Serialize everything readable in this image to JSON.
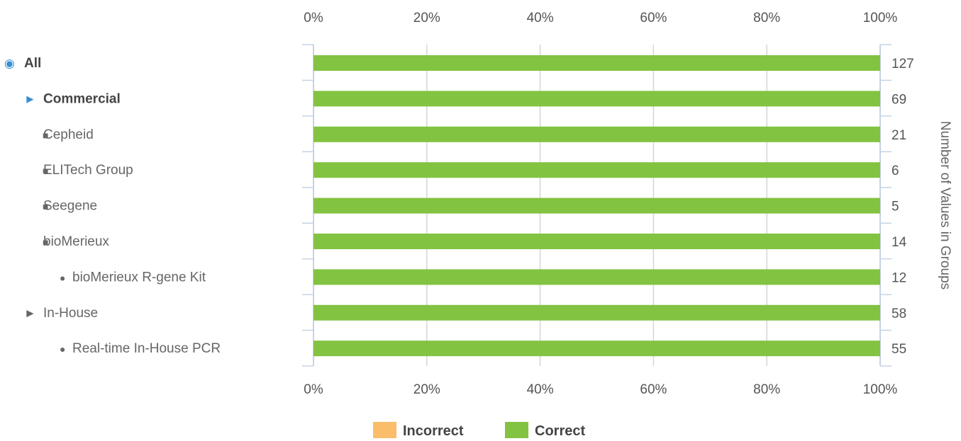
{
  "colors": {
    "correct": "#82c341",
    "incorrect": "#f9bd6b",
    "marker_accent": "#3a8fd0",
    "marker_default": "#666666",
    "gridline": "#d5d5d5",
    "axis_line": "#c5d3e4"
  },
  "chart_data": {
    "type": "bar",
    "orientation": "horizontal",
    "stacked": true,
    "percent_scale": true,
    "xlim": [
      0,
      100
    ],
    "x_ticks": [
      "0%",
      "20%",
      "40%",
      "60%",
      "80%",
      "100%"
    ],
    "secondary_ylabel": "Number of Values in Groups",
    "categories": [
      {
        "marker": "◉",
        "label": "All",
        "level": 0,
        "bold": true,
        "accent": true,
        "count": "127"
      },
      {
        "marker": "►",
        "label": "Commercial",
        "level": 1,
        "bold": true,
        "accent": true,
        "count": "69"
      },
      {
        "marker": "■",
        "label": "Cepheid",
        "level": 2,
        "bold": false,
        "accent": false,
        "count": "21"
      },
      {
        "marker": "■",
        "label": "ELITech Group",
        "level": 2,
        "bold": false,
        "accent": false,
        "count": "6"
      },
      {
        "marker": "■",
        "label": "Seegene",
        "level": 2,
        "bold": false,
        "accent": false,
        "count": "5"
      },
      {
        "marker": "■",
        "label": "bioMerieux",
        "level": 2,
        "bold": false,
        "accent": false,
        "count": "14"
      },
      {
        "marker": "●",
        "label": "bioMerieux R-gene Kit",
        "level": 3,
        "bold": false,
        "accent": false,
        "count": "12"
      },
      {
        "marker": "►",
        "label": "In-House",
        "level": 1,
        "bold": false,
        "accent": false,
        "count": "58"
      },
      {
        "marker": "●",
        "label": "Real-time In-House PCR",
        "level": 3,
        "bold": false,
        "accent": false,
        "count": "55"
      }
    ],
    "series": [
      {
        "name": "Incorrect",
        "color": "#f9bd6b",
        "values": [
          0,
          0,
          0,
          0,
          0,
          0,
          0,
          0,
          0
        ]
      },
      {
        "name": "Correct",
        "color": "#82c341",
        "values": [
          100,
          100,
          100,
          100,
          100,
          100,
          100,
          100,
          100
        ]
      }
    ],
    "legend_position": "bottom-center",
    "grid": true
  }
}
